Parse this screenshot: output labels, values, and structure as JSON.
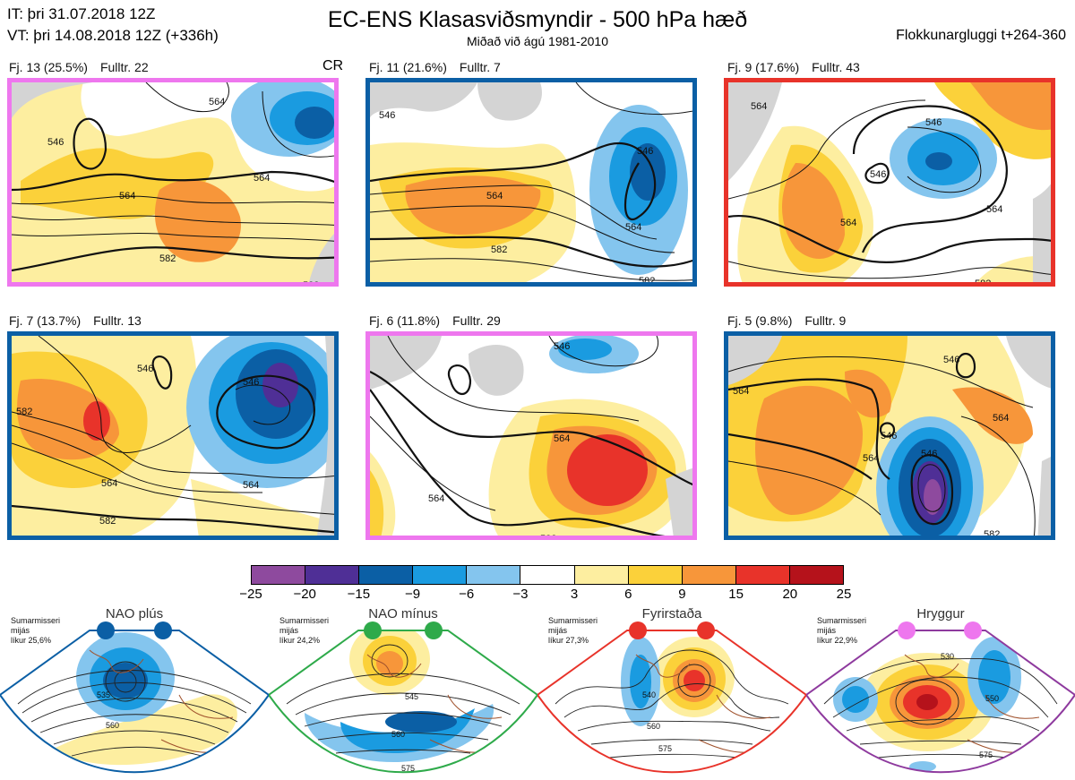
{
  "header": {
    "it": "IT: þri 31.07.2018 12Z",
    "vt": "VT: þri 14.08.2018 12Z  (+336h)",
    "title": "EC-ENS Klasasviðsmyndir - 500 hPa hæð",
    "subtitle": "Miðað við ágú 1981-2010",
    "window": "Flokkunargluggi t+264-360"
  },
  "cr_label": "CR",
  "clusters": [
    {
      "fj": "Fj. 13 (25.5%)",
      "fulltr": "Fulltr. 22",
      "border_color": "#ee77ee",
      "contour_labels": [
        "546",
        "564",
        "564",
        "582",
        "564",
        "582"
      ]
    },
    {
      "fj": "Fj. 11 (21.6%)",
      "fulltr": "Fulltr. 7",
      "border_color": "#0b5fa5",
      "contour_labels": [
        "546",
        "564",
        "546",
        "564",
        "582",
        "582"
      ]
    },
    {
      "fj": "Fj. 9 (17.6%)",
      "fulltr": "Fulltr. 43",
      "border_color": "#e8332a",
      "contour_labels": [
        "564",
        "546",
        "546",
        "564",
        "564",
        "582"
      ]
    },
    {
      "fj": "Fj. 7 (13.7%)",
      "fulltr": "Fulltr. 13",
      "border_color": "#0b5fa5",
      "contour_labels": [
        "546",
        "546",
        "582",
        "564",
        "564",
        "582"
      ]
    },
    {
      "fj": "Fj. 6 (11.8%)",
      "fulltr": "Fulltr. 29",
      "border_color": "#ee77ee",
      "contour_labels": [
        "546",
        "564",
        "564",
        "582"
      ]
    },
    {
      "fj": "Fj. 5 (9.8%)",
      "fulltr": "Fulltr. 9",
      "border_color": "#0b5fa5",
      "contour_labels": [
        "546",
        "564",
        "564",
        "546",
        "546",
        "564",
        "582"
      ]
    }
  ],
  "colorbar": {
    "colors": [
      "#8e4a9e",
      "#4f2f96",
      "#0b5fa5",
      "#1a9be0",
      "#84c5ee",
      "#ffffff",
      "#fdeea0",
      "#fbd13a",
      "#f7963a",
      "#e8332a",
      "#b5121b"
    ],
    "ticks": [
      "−25",
      "−20",
      "−15",
      "−9",
      "−6",
      "−3",
      "3",
      "6",
      "9",
      "15",
      "20",
      "25"
    ]
  },
  "regimes": [
    {
      "title": "NAO plús",
      "info": [
        "Sumarmisseri",
        "mijás",
        "líkur 25,6%"
      ],
      "color": "#0b5fa5",
      "labels": [
        "535",
        "560"
      ]
    },
    {
      "title": "NAO mínus",
      "info": [
        "Sumarmisseri",
        "mijás",
        "líkur 24,2%"
      ],
      "color": "#2eaa4a",
      "labels": [
        "545",
        "560",
        "575"
      ]
    },
    {
      "title": "Fyrirstaða",
      "info": [
        "Sumarmisseri",
        "mijás",
        "líkur 27,3%"
      ],
      "color": "#e8332a",
      "labels": [
        "540",
        "560",
        "575"
      ]
    },
    {
      "title": "Hryggur",
      "info": [
        "Sumarmisseri",
        "mijás",
        "líkur 22,9%"
      ],
      "color": "#8e3a9e",
      "labels": [
        "530",
        "550",
        "575"
      ]
    }
  ]
}
